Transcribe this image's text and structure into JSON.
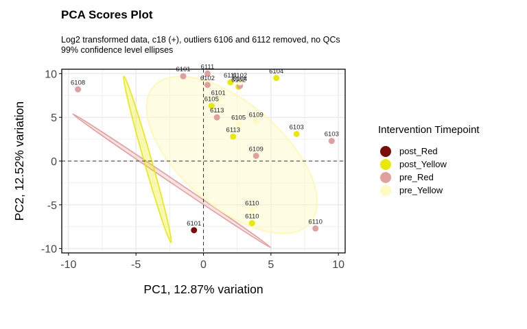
{
  "title": "PCA Scores Plot",
  "subtitle": [
    "Log2 transformed data, c18 (+), outliers 6106 and 6112 removed, no QCs",
    "99% confidence level ellipses"
  ],
  "legend": {
    "title": "Intervention Timepoint",
    "items": [
      {
        "label": "post_Red",
        "color": "#7b0c0c"
      },
      {
        "label": "post_Yellow",
        "color": "#e8e80b"
      },
      {
        "label": "pre_Red",
        "color": "#e0a0a0"
      },
      {
        "label": "pre_Yellow",
        "color": "#fff9c4"
      }
    ]
  },
  "chart_data": {
    "type": "scatter",
    "xlabel": "PC1, 12.87% variation",
    "ylabel": "PC2, 12.52% variation",
    "xlim": [
      -10.5,
      10.5
    ],
    "ylim": [
      -10.5,
      10.5
    ],
    "xticks": [
      -10,
      -5,
      0,
      5,
      10
    ],
    "yticks": [
      -10,
      -5,
      0,
      5,
      10
    ],
    "grid": true,
    "legend_position": "right",
    "reference_lines": {
      "x": 0,
      "y": 0
    },
    "ellipses": [
      {
        "group": "post_Red",
        "points": [
          [
            -9.7,
            5.4
          ],
          [
            5.0,
            -9.9
          ]
        ],
        "fill": "#e0a0a0",
        "stroke": "#e0a0a0"
      },
      {
        "group": "post_Yellow",
        "points": [
          [
            -5.9,
            9.7
          ],
          [
            -2.4,
            -9.3
          ]
        ],
        "fill": "#e8e80b",
        "stroke": "#e8e80b"
      },
      {
        "group": "pre_Yellow",
        "points": [
          [
            -3.7,
            8.5
          ],
          [
            7.9,
            -7.1
          ]
        ],
        "fill": "#fff9c4",
        "stroke": "#fff7b0"
      }
    ],
    "series": [
      {
        "name": "post_Red",
        "color": "#7b0c0c",
        "points": [
          {
            "x": -0.7,
            "y": -7.9,
            "label": "6101"
          }
        ]
      },
      {
        "name": "post_Yellow",
        "color": "#e8e80b",
        "points": [
          {
            "x": 2.0,
            "y": 9.0,
            "label": "6111"
          },
          {
            "x": 2.6,
            "y": 8.5,
            "label": "6102"
          },
          {
            "x": 5.4,
            "y": 9.5,
            "label": "6104"
          },
          {
            "x": 0.6,
            "y": 6.3,
            "label": "6105"
          },
          {
            "x": 2.2,
            "y": 2.8,
            "label": "6113"
          },
          {
            "x": 6.9,
            "y": 3.1,
            "label": "6103"
          },
          {
            "x": 3.6,
            "y": -7.1,
            "label": "6110"
          }
        ]
      },
      {
        "name": "pre_Red",
        "color": "#e0a0a0",
        "points": [
          {
            "x": -9.3,
            "y": 8.2,
            "label": "6108"
          },
          {
            "x": -1.5,
            "y": 9.7,
            "label": "6101"
          },
          {
            "x": 0.3,
            "y": 10.0,
            "label": "6111"
          },
          {
            "x": 0.3,
            "y": 8.7,
            "label": "6102"
          },
          {
            "x": 2.7,
            "y": 8.6,
            "label": "6104"
          },
          {
            "x": 1.0,
            "y": 5.0,
            "label": "6113"
          },
          {
            "x": 3.9,
            "y": 0.6,
            "label": "6109"
          },
          {
            "x": 9.5,
            "y": 2.3,
            "label": "6103"
          },
          {
            "x": 8.3,
            "y": -7.7,
            "label": "6110"
          }
        ]
      },
      {
        "name": "pre_Yellow",
        "color": "#fff9c4",
        "points": [
          {
            "x": 1.1,
            "y": 7.0,
            "label": "6101"
          },
          {
            "x": 2.7,
            "y": 9.0,
            "label": "6102"
          },
          {
            "x": 2.6,
            "y": 4.2,
            "label": "6105"
          },
          {
            "x": 3.9,
            "y": 4.5,
            "label": "6109"
          },
          {
            "x": 3.6,
            "y": -5.6,
            "label": "6110"
          }
        ]
      }
    ]
  }
}
